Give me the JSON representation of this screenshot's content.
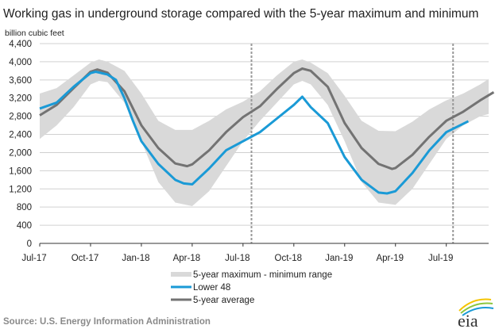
{
  "chart_data": {
    "type": "line",
    "title": "Working gas in underground  storage compared with the 5-year maximum and minimum",
    "ylabel": "billion cubic feet",
    "xlabel": "",
    "ylim": [
      0,
      4400
    ],
    "yticks": [
      0,
      400,
      800,
      1200,
      1600,
      2000,
      2400,
      2800,
      3200,
      3600,
      4000,
      4400
    ],
    "yticklabels": [
      "0",
      "400",
      "800",
      "1,200",
      "1,600",
      "2,000",
      "2,400",
      "2,800",
      "3,200",
      "3,600",
      "4,000",
      "4,400"
    ],
    "x_unit": "months since Jul-17",
    "xlim": [
      0,
      26.5
    ],
    "xticks": [
      0,
      3,
      6,
      9,
      12,
      15,
      18,
      21,
      24
    ],
    "xticklabels": [
      "Jul-17",
      "Oct-17",
      "Jan-18",
      "Apr-18",
      "Jul-18",
      "Oct-18",
      "Jan-19",
      "Apr-19",
      "Jul-19"
    ],
    "grid": true,
    "vertical_markers": [
      12.5,
      24.4
    ],
    "legend_position": "bottom",
    "range": {
      "name": "5-year maximum - minimum range",
      "color": "#d9d9d9",
      "x": [
        0,
        1,
        2,
        3,
        3.5,
        4,
        5,
        6,
        7,
        8,
        9,
        10,
        11,
        12,
        13,
        14,
        15,
        15.5,
        16,
        17,
        18,
        19,
        20,
        21,
        22,
        23,
        24,
        25,
        26,
        26.5
      ],
      "max": [
        3300,
        3420,
        3700,
        3980,
        4050,
        4000,
        3800,
        3300,
        2700,
        2500,
        2500,
        2700,
        2950,
        3120,
        3350,
        3700,
        4000,
        4050,
        3980,
        3750,
        3250,
        2700,
        2480,
        2470,
        2680,
        2950,
        3150,
        3300,
        3500,
        3620
      ],
      "min": [
        2300,
        2600,
        3000,
        3500,
        3580,
        3550,
        3100,
        2250,
        1350,
        900,
        820,
        1150,
        1700,
        2250,
        2700,
        3100,
        3500,
        3580,
        3500,
        3050,
        2250,
        1350,
        900,
        850,
        1200,
        1750,
        2300,
        2600,
        2800,
        2850
      ]
    },
    "series": [
      {
        "name": "Lower 48",
        "color": "#1a9ad6",
        "x": [
          0,
          1,
          2,
          3,
          3.3,
          4,
          4.5,
          5,
          5.5,
          6,
          7,
          8,
          8.5,
          9,
          10,
          11,
          12,
          13,
          14,
          15,
          15.5,
          16,
          17,
          18,
          19,
          20,
          20.5,
          21,
          22,
          23,
          24,
          25.3
        ],
        "y": [
          2970,
          3100,
          3450,
          3750,
          3780,
          3720,
          3600,
          3200,
          2700,
          2250,
          1750,
          1400,
          1320,
          1300,
          1650,
          2050,
          2250,
          2450,
          2750,
          3050,
          3230,
          3000,
          2650,
          1900,
          1400,
          1120,
          1100,
          1150,
          1550,
          2050,
          2450,
          2690
        ]
      },
      {
        "name": "5-year average",
        "color": "#737373",
        "x": [
          0,
          1,
          2,
          3,
          3.4,
          4,
          5,
          6,
          7,
          8,
          8.7,
          9,
          10,
          11,
          12,
          13,
          14,
          15,
          15.5,
          16,
          17,
          18,
          19,
          20,
          20.8,
          21,
          22,
          23,
          24,
          25,
          26,
          26.8
        ],
        "y": [
          2820,
          3050,
          3420,
          3780,
          3830,
          3760,
          3350,
          2600,
          2100,
          1760,
          1700,
          1740,
          2050,
          2450,
          2780,
          3020,
          3400,
          3750,
          3850,
          3800,
          3450,
          2650,
          2100,
          1750,
          1640,
          1660,
          1950,
          2350,
          2700,
          2900,
          3150,
          3330
        ]
      }
    ]
  },
  "source": "Source:  U.S. Energy Information Administration",
  "logo_text": "eia"
}
